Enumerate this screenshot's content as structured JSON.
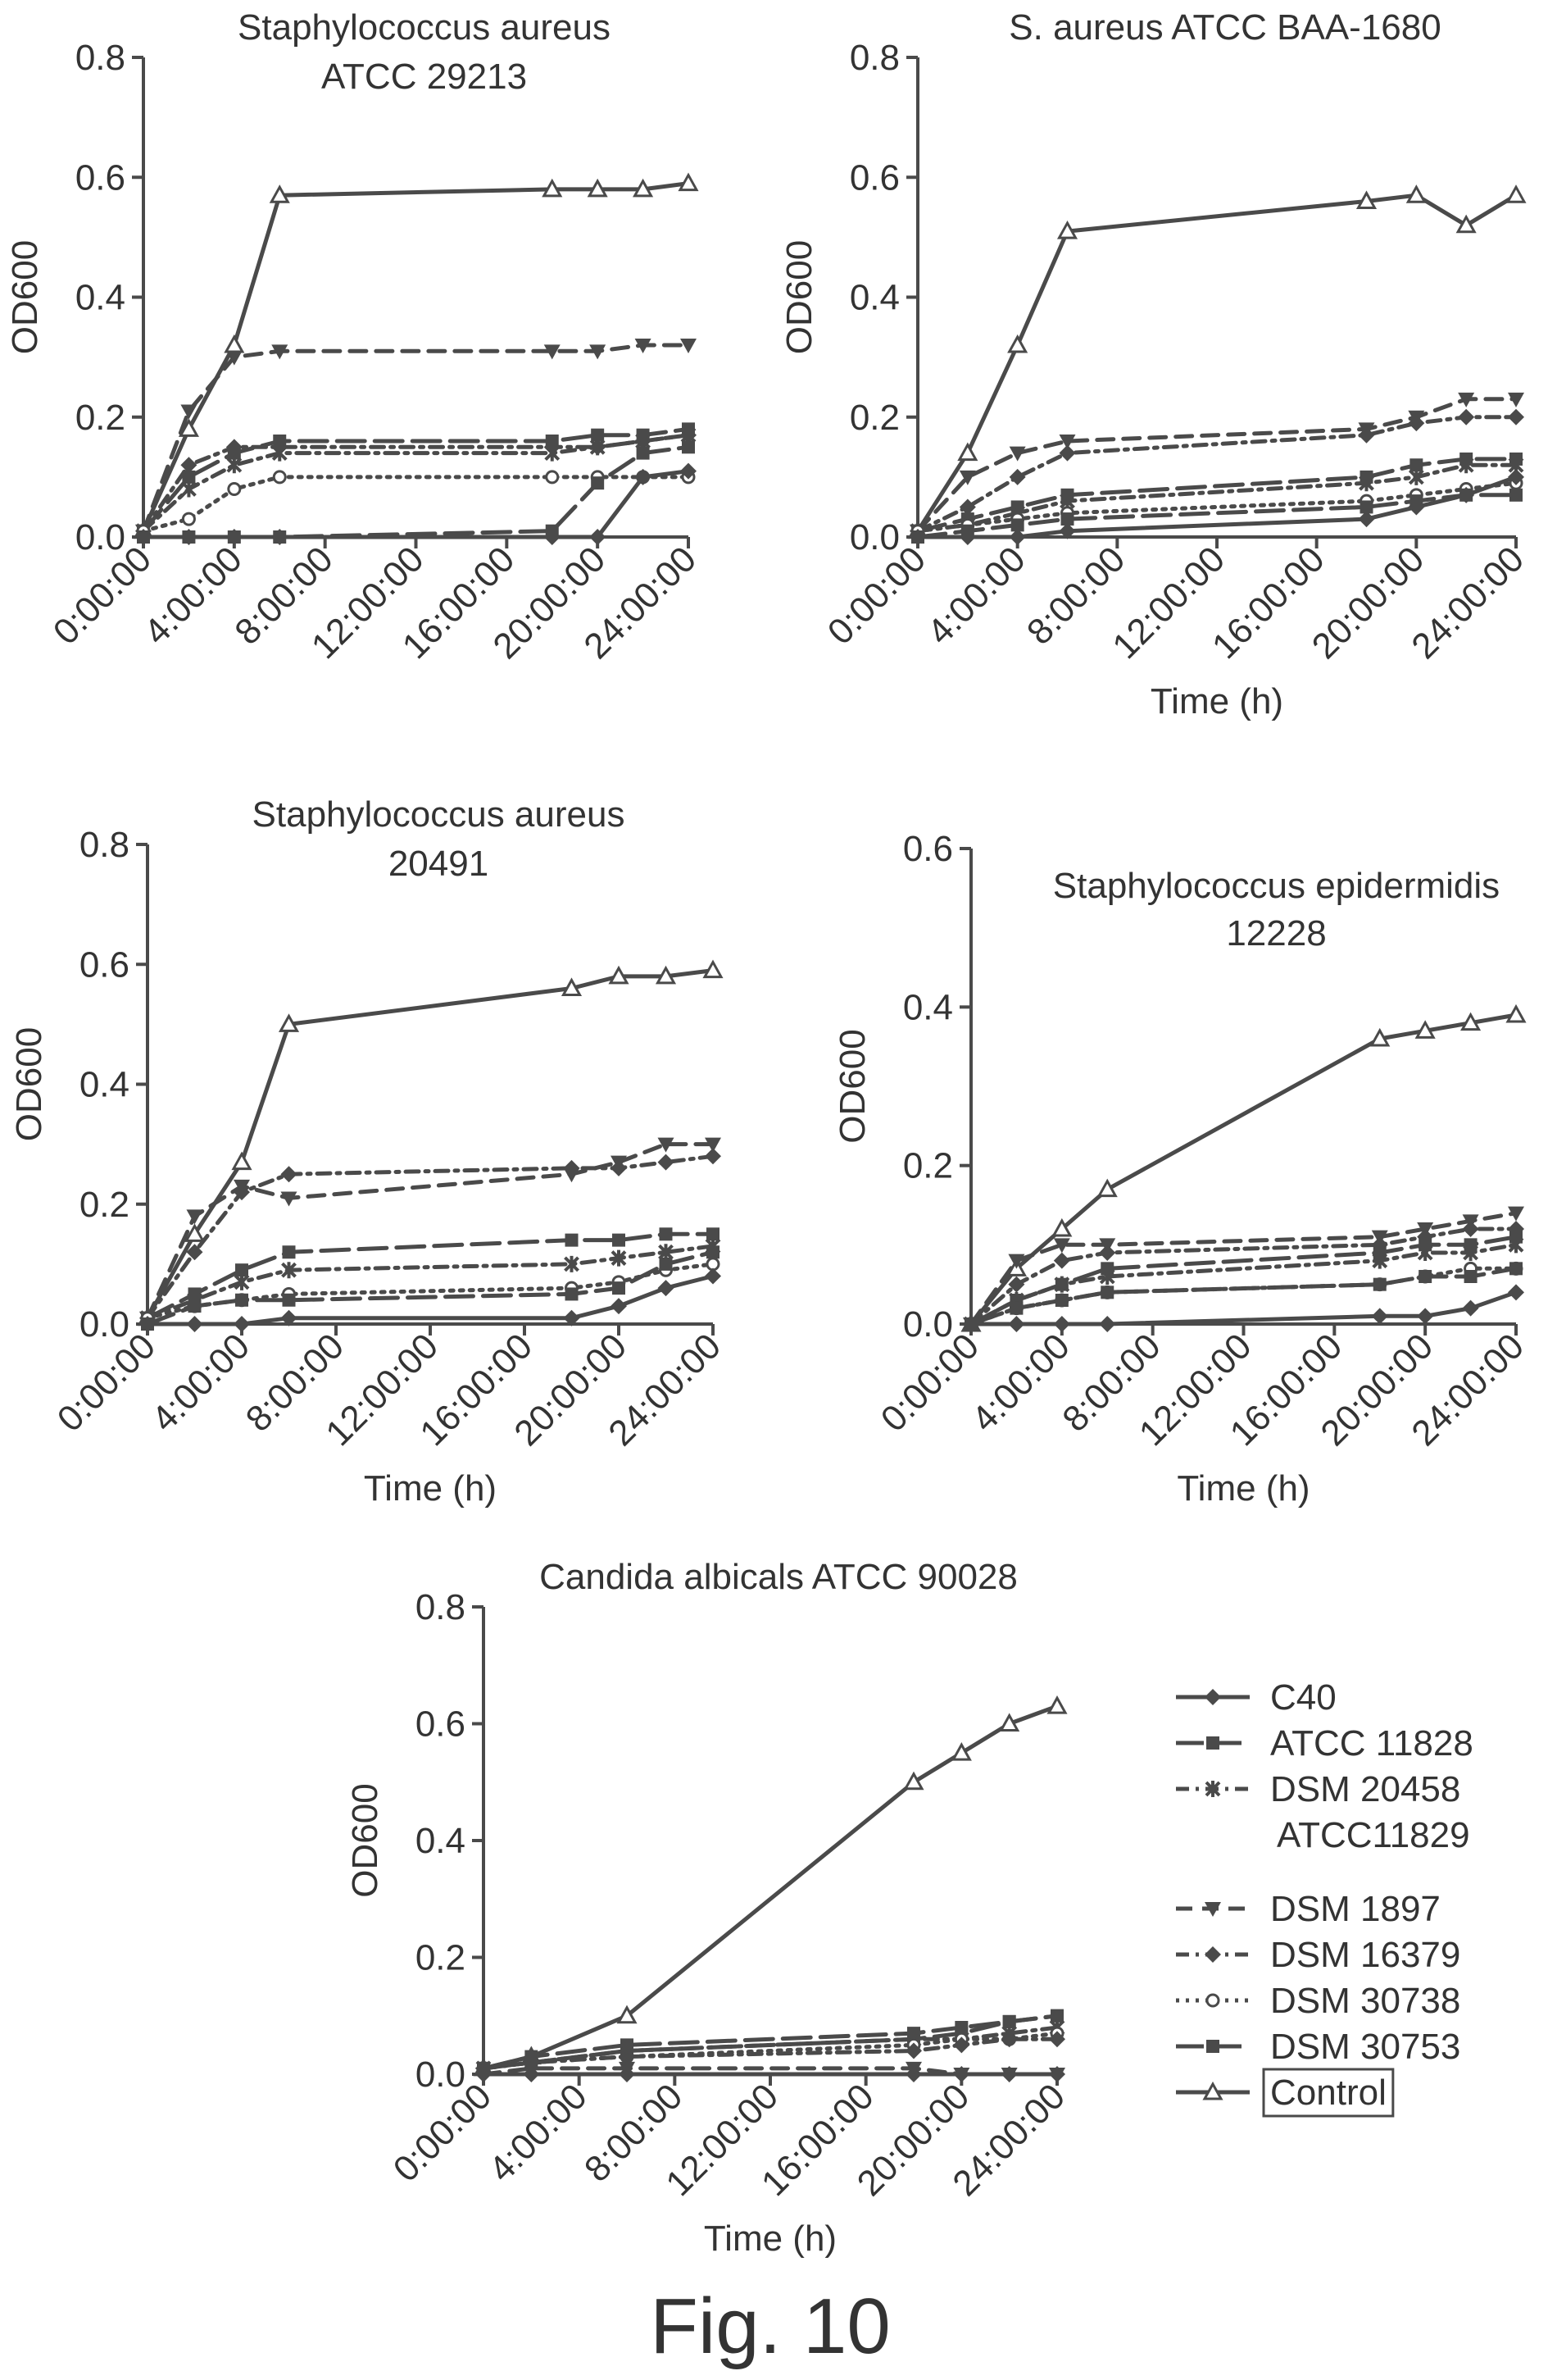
{
  "figure_label": "Fig. 10",
  "colors": {
    "ink": "#4a4a4a",
    "text": "#333333"
  },
  "legend": {
    "items": [
      {
        "label": "C40",
        "style": "solid",
        "marker": "diamond"
      },
      {
        "label": "ATCC 11828",
        "style": "longdash",
        "marker": "square"
      },
      {
        "label": "DSM 20458",
        "label2": "ATCC11829",
        "style": "dashdot",
        "marker": "star"
      },
      {
        "label": "DSM 1897",
        "style": "dash",
        "marker": "triangle-down"
      },
      {
        "label": "DSM 16379",
        "style": "dashdot",
        "marker": "diamond"
      },
      {
        "label": "DSM 30738",
        "style": "dot",
        "marker": "circle"
      },
      {
        "label": "DSM 30753",
        "style": "longdash",
        "marker": "square"
      },
      {
        "label": "Control",
        "style": "solid",
        "marker": "triangle",
        "boxed": true
      }
    ]
  },
  "chart_data": [
    {
      "type": "line",
      "title": "Staphylococcus aureus",
      "title2": "ATCC 29213",
      "xlabel": "",
      "ylabel": "OD600",
      "ylim": [
        0,
        0.8
      ],
      "yticks": [
        "0.0",
        "0.2",
        "0.4",
        "0.6",
        "0.8"
      ],
      "xticks": [
        "0:00:00",
        "4:00:00",
        "8:00:00",
        "12:00:00",
        "16:00:00",
        "20:00:00",
        "24:00:00"
      ],
      "x": [
        0,
        2,
        4,
        6,
        18,
        20,
        22,
        24
      ],
      "series": [
        {
          "name": "Control",
          "values": [
            0.01,
            0.18,
            0.32,
            0.57,
            0.58,
            0.58,
            0.58,
            0.59
          ]
        },
        {
          "name": "DSM 1897",
          "values": [
            0.01,
            0.21,
            0.3,
            0.31,
            0.31,
            0.31,
            0.32,
            0.32
          ]
        },
        {
          "name": "ATCC 11828",
          "values": [
            0.01,
            0.1,
            0.14,
            0.16,
            0.16,
            0.17,
            0.17,
            0.18
          ]
        },
        {
          "name": "DSM 16379",
          "values": [
            0.01,
            0.12,
            0.15,
            0.15,
            0.15,
            0.15,
            0.16,
            0.17
          ]
        },
        {
          "name": "DSM 20458",
          "values": [
            0.01,
            0.08,
            0.12,
            0.14,
            0.14,
            0.15,
            0.16,
            0.17
          ]
        },
        {
          "name": "DSM 30738",
          "values": [
            0.01,
            0.03,
            0.08,
            0.1,
            0.1,
            0.1,
            0.1,
            0.1
          ]
        },
        {
          "name": "DSM 30753",
          "values": [
            0.0,
            0.0,
            0.0,
            0.0,
            0.01,
            0.09,
            0.14,
            0.15
          ]
        },
        {
          "name": "C40",
          "values": [
            0.0,
            0.0,
            0.0,
            0.0,
            0.0,
            0.0,
            0.1,
            0.11
          ]
        }
      ]
    },
    {
      "type": "line",
      "title": "S. aureus ATCC BAA-1680",
      "title2": "",
      "xlabel": "Time (h)",
      "ylabel": "OD600",
      "ylim": [
        0,
        0.8
      ],
      "yticks": [
        "0.0",
        "0.2",
        "0.4",
        "0.6",
        "0.8"
      ],
      "xticks": [
        "0:00:00",
        "4:00:00",
        "8:00:00",
        "12:00:00",
        "16:00:00",
        "20:00:00",
        "24:00:00"
      ],
      "x": [
        0,
        2,
        4,
        6,
        18,
        20,
        22,
        24
      ],
      "series": [
        {
          "name": "Control",
          "values": [
            0.01,
            0.14,
            0.32,
            0.51,
            0.56,
            0.57,
            0.52,
            0.57
          ]
        },
        {
          "name": "DSM 1897",
          "values": [
            0.01,
            0.1,
            0.14,
            0.16,
            0.18,
            0.2,
            0.23,
            0.23
          ]
        },
        {
          "name": "DSM 16379",
          "values": [
            0.01,
            0.05,
            0.1,
            0.14,
            0.17,
            0.19,
            0.2,
            0.2
          ]
        },
        {
          "name": "ATCC 11828",
          "values": [
            0.01,
            0.03,
            0.05,
            0.07,
            0.1,
            0.12,
            0.13,
            0.13
          ]
        },
        {
          "name": "DSM 20458",
          "values": [
            0.01,
            0.02,
            0.04,
            0.06,
            0.09,
            0.1,
            0.12,
            0.12
          ]
        },
        {
          "name": "DSM 30738",
          "values": [
            0.01,
            0.02,
            0.03,
            0.04,
            0.06,
            0.07,
            0.08,
            0.09
          ]
        },
        {
          "name": "DSM 30753",
          "values": [
            0.0,
            0.01,
            0.02,
            0.03,
            0.05,
            0.06,
            0.07,
            0.07
          ]
        },
        {
          "name": "C40",
          "values": [
            0.0,
            0.0,
            0.0,
            0.01,
            0.03,
            0.05,
            0.07,
            0.1
          ]
        }
      ]
    },
    {
      "type": "line",
      "title": "Staphylococcus aureus",
      "title2": "20491",
      "xlabel": "Time (h)",
      "ylabel": "OD600",
      "ylim": [
        0,
        0.8
      ],
      "yticks": [
        "0.0",
        "0.2",
        "0.4",
        "0.6",
        "0.8"
      ],
      "xticks": [
        "0:00:00",
        "4:00:00",
        "8:00:00",
        "12:00:00",
        "16:00:00",
        "20:00:00",
        "24:00:00"
      ],
      "x": [
        0,
        2,
        4,
        6,
        18,
        20,
        22,
        24
      ],
      "series": [
        {
          "name": "Control",
          "values": [
            0.01,
            0.15,
            0.27,
            0.5,
            0.56,
            0.58,
            0.58,
            0.59
          ]
        },
        {
          "name": "DSM 1897",
          "values": [
            0.01,
            0.18,
            0.23,
            0.21,
            0.25,
            0.27,
            0.3,
            0.3
          ]
        },
        {
          "name": "DSM 16379",
          "values": [
            0.01,
            0.12,
            0.22,
            0.25,
            0.26,
            0.26,
            0.27,
            0.28
          ]
        },
        {
          "name": "ATCC 11828",
          "values": [
            0.01,
            0.05,
            0.09,
            0.12,
            0.14,
            0.14,
            0.15,
            0.15
          ]
        },
        {
          "name": "DSM 20458",
          "values": [
            0.01,
            0.04,
            0.07,
            0.09,
            0.1,
            0.11,
            0.12,
            0.13
          ]
        },
        {
          "name": "DSM 30738",
          "values": [
            0.01,
            0.03,
            0.04,
            0.05,
            0.06,
            0.07,
            0.09,
            0.1
          ]
        },
        {
          "name": "DSM 30753",
          "values": [
            0.0,
            0.03,
            0.04,
            0.04,
            0.05,
            0.06,
            0.1,
            0.12
          ]
        },
        {
          "name": "C40",
          "values": [
            0.0,
            0.0,
            0.0,
            0.01,
            0.01,
            0.03,
            0.06,
            0.08
          ]
        }
      ]
    },
    {
      "type": "line",
      "title": "Staphylococcus epidermidis",
      "title2": "12228",
      "xlabel": "Time (h)",
      "ylabel": "OD600",
      "ylim": [
        0,
        0.6
      ],
      "yticks": [
        "0.0",
        "0.2",
        "0.4",
        "0.6"
      ],
      "xticks": [
        "0:00:00",
        "4:00:00",
        "8:00:00",
        "12:00:00",
        "16:00:00",
        "20:00:00",
        "24:00:00"
      ],
      "x": [
        0,
        2,
        4,
        6,
        18,
        20,
        22,
        24
      ],
      "series": [
        {
          "name": "Control",
          "values": [
            0.0,
            0.07,
            0.12,
            0.17,
            0.36,
            0.37,
            0.38,
            0.39
          ]
        },
        {
          "name": "DSM 1897",
          "values": [
            0.0,
            0.08,
            0.1,
            0.1,
            0.11,
            0.12,
            0.13,
            0.14
          ]
        },
        {
          "name": "DSM 16379",
          "values": [
            0.0,
            0.05,
            0.08,
            0.09,
            0.1,
            0.11,
            0.12,
            0.12
          ]
        },
        {
          "name": "ATCC 11828",
          "values": [
            0.0,
            0.03,
            0.05,
            0.07,
            0.09,
            0.1,
            0.1,
            0.11
          ]
        },
        {
          "name": "DSM 20458",
          "values": [
            0.0,
            0.03,
            0.05,
            0.06,
            0.08,
            0.09,
            0.09,
            0.1
          ]
        },
        {
          "name": "DSM 30738",
          "values": [
            0.0,
            0.02,
            0.03,
            0.04,
            0.05,
            0.06,
            0.07,
            0.07
          ]
        },
        {
          "name": "DSM 30753",
          "values": [
            0.0,
            0.02,
            0.03,
            0.04,
            0.05,
            0.06,
            0.06,
            0.07
          ]
        },
        {
          "name": "C40",
          "values": [
            0.0,
            0.0,
            0.0,
            0.0,
            0.01,
            0.01,
            0.02,
            0.04
          ]
        }
      ]
    },
    {
      "type": "line",
      "title": "Candida albicals ATCC 90028",
      "title2": "",
      "xlabel": "Time (h)",
      "ylabel": "OD600",
      "ylim": [
        0,
        0.8
      ],
      "yticks": [
        "0.0",
        "0.2",
        "0.4",
        "0.6",
        "0.8"
      ],
      "xticks": [
        "0:00:00",
        "4:00:00",
        "8:00:00",
        "12:00:00",
        "16:00:00",
        "20:00:00",
        "24:00:00"
      ],
      "x": [
        0,
        2,
        6,
        18,
        20,
        22,
        24
      ],
      "series": [
        {
          "name": "Control",
          "values": [
            0.01,
            0.03,
            0.1,
            0.5,
            0.55,
            0.6,
            0.63
          ]
        },
        {
          "name": "DSM 30753",
          "values": [
            0.01,
            0.03,
            0.05,
            0.07,
            0.08,
            0.09,
            0.1
          ]
        },
        {
          "name": "ATCC 11828",
          "values": [
            0.01,
            0.02,
            0.04,
            0.06,
            0.07,
            0.09,
            0.1
          ]
        },
        {
          "name": "DSM 20458",
          "values": [
            0.01,
            0.02,
            0.04,
            0.06,
            0.06,
            0.07,
            0.08
          ]
        },
        {
          "name": "DSM 30738",
          "values": [
            0.01,
            0.02,
            0.03,
            0.05,
            0.06,
            0.06,
            0.07
          ]
        },
        {
          "name": "DSM 16379",
          "values": [
            0.01,
            0.02,
            0.03,
            0.04,
            0.05,
            0.06,
            0.06
          ]
        },
        {
          "name": "DSM 1897",
          "values": [
            0.0,
            0.01,
            0.01,
            0.01,
            0.0,
            0.0,
            0.0
          ]
        },
        {
          "name": "C40",
          "values": [
            0.0,
            0.0,
            0.0,
            0.0,
            0.0,
            0.0,
            0.0
          ]
        }
      ]
    }
  ]
}
